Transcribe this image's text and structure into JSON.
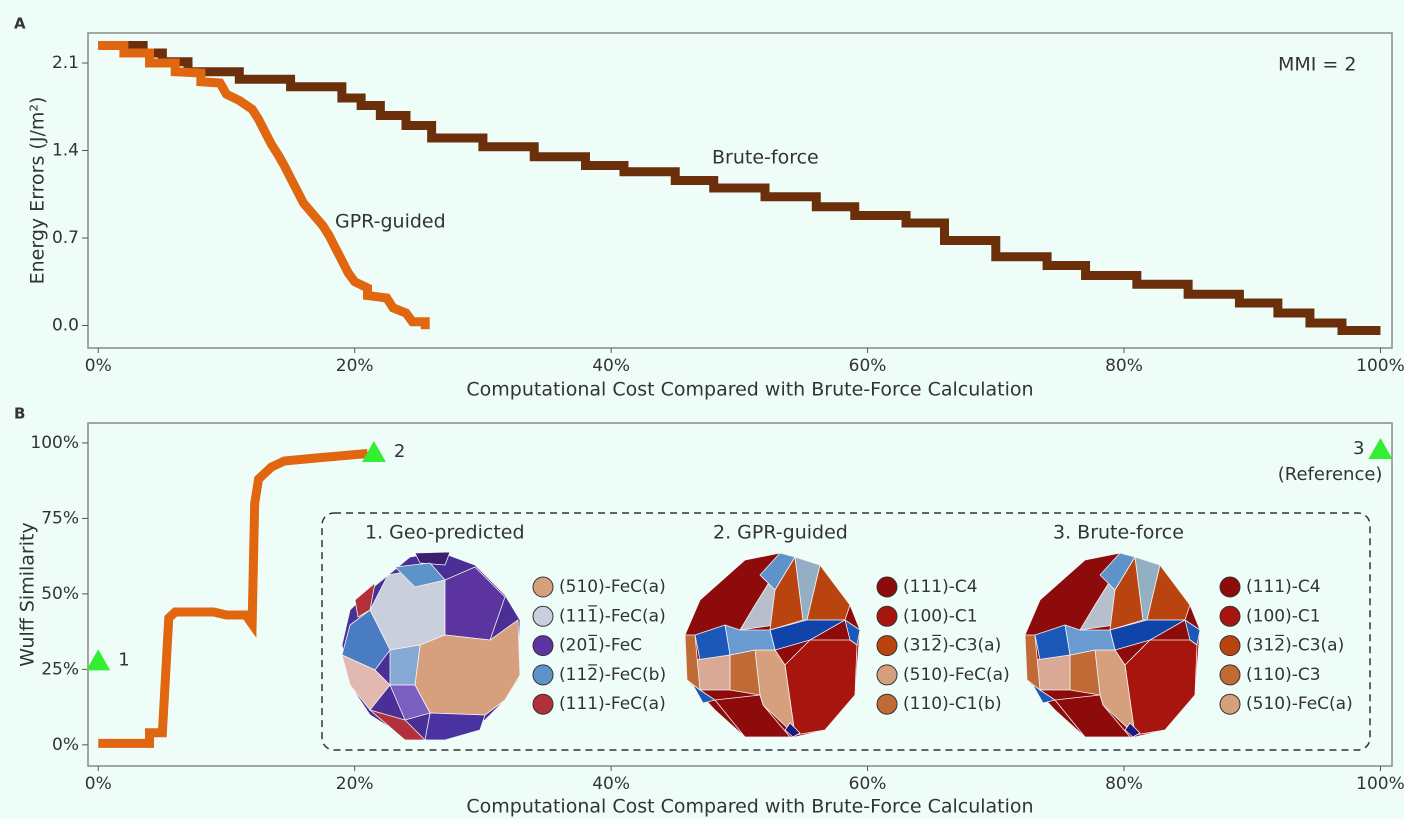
{
  "chart_data": [
    {
      "type": "line",
      "label": "A",
      "xlabel": "Computational Cost Compared with Brute-Force Calculation",
      "ylabel": "Energy Errors (J/m²)",
      "annotation": "MMI = 2",
      "xlim": [
        -0.8,
        100.9
      ],
      "ylim": [
        -0.18,
        2.34
      ],
      "xticks": [
        {
          "value": 0,
          "label": "0%"
        },
        {
          "value": 20,
          "label": "20%"
        },
        {
          "value": 40,
          "label": "40%"
        },
        {
          "value": 60,
          "label": "60%"
        },
        {
          "value": 80,
          "label": "80%"
        },
        {
          "value": 100,
          "label": "100%"
        }
      ],
      "yticks": [
        {
          "value": 0,
          "label": "0.0"
        },
        0.7,
        1.4,
        2.1
      ],
      "series": [
        {
          "name": "Brute-force",
          "color": "#6b2f0c",
          "x": [
            0,
            3.5,
            3.5,
            5,
            5,
            7,
            7,
            11,
            11,
            15,
            15,
            19,
            19,
            20.5,
            20.5,
            22,
            22,
            24,
            24,
            26,
            26,
            30,
            30,
            34,
            34,
            38,
            38,
            41,
            41,
            45,
            45,
            48,
            48,
            52,
            52,
            56,
            56,
            59,
            59,
            63,
            63,
            66,
            66,
            70,
            70,
            74,
            74,
            77,
            77,
            81,
            81,
            85,
            85,
            89,
            89,
            92,
            92,
            94.5,
            94.5,
            97,
            97,
            100
          ],
          "values": [
            2.24,
            2.24,
            2.18,
            2.18,
            2.11,
            2.11,
            2.03,
            2.03,
            1.97,
            1.97,
            1.91,
            1.91,
            1.82,
            1.82,
            1.76,
            1.76,
            1.68,
            1.68,
            1.6,
            1.6,
            1.5,
            1.5,
            1.43,
            1.43,
            1.35,
            1.35,
            1.28,
            1.28,
            1.23,
            1.23,
            1.16,
            1.16,
            1.1,
            1.1,
            1.03,
            1.03,
            0.95,
            0.95,
            0.88,
            0.88,
            0.82,
            0.82,
            0.68,
            0.68,
            0.55,
            0.55,
            0.48,
            0.48,
            0.4,
            0.4,
            0.33,
            0.33,
            0.25,
            0.25,
            0.18,
            0.18,
            0.1,
            0.1,
            0.02,
            0.02,
            -0.04,
            -0.04
          ]
        },
        {
          "name": "GPR-guided",
          "color": "#e0660f",
          "x": [
            0,
            2,
            2,
            4,
            4,
            6,
            6,
            8,
            8,
            9.5,
            10,
            11,
            12,
            12.5,
            13,
            13.5,
            14,
            14.5,
            15,
            15.5,
            16,
            16.5,
            17,
            17.5,
            18,
            18.5,
            19,
            19.5,
            20,
            21,
            21,
            22.5,
            23,
            24,
            24.5,
            25.5,
            25.5
          ],
          "values": [
            2.24,
            2.24,
            2.18,
            2.18,
            2.1,
            2.1,
            2.03,
            2.02,
            1.95,
            1.94,
            1.85,
            1.8,
            1.73,
            1.65,
            1.55,
            1.45,
            1.37,
            1.28,
            1.18,
            1.08,
            0.98,
            0.92,
            0.86,
            0.8,
            0.72,
            0.62,
            0.52,
            0.42,
            0.35,
            0.3,
            0.24,
            0.22,
            0.14,
            0.1,
            0.03,
            0.03,
            -0.03
          ]
        }
      ]
    },
    {
      "type": "line",
      "label": "B",
      "xlabel": "Computational Cost Compared with Brute-Force Calculation",
      "ylabel": "Wulff Similarity",
      "xlim": [
        -0.8,
        100.9
      ],
      "ylim": [
        -7,
        106.6
      ],
      "xticks": [
        {
          "value": 0,
          "label": "0%"
        },
        {
          "value": 20,
          "label": "20%"
        },
        {
          "value": 40,
          "label": "40%"
        },
        {
          "value": 60,
          "label": "60%"
        },
        {
          "value": 80,
          "label": "80%"
        },
        {
          "value": 100,
          "label": "100%"
        }
      ],
      "yticks": [
        {
          "value": 0,
          "label": "0%"
        },
        {
          "value": 25,
          "label": "25%"
        },
        {
          "value": 50,
          "label": "50%"
        },
        {
          "value": 75,
          "label": "75%"
        },
        {
          "value": 100,
          "label": "100%"
        }
      ],
      "series": [
        {
          "color": "#e0660f",
          "x": [
            0,
            4,
            4,
            5,
            5.5,
            6,
            9,
            10,
            11.5,
            12,
            12.2,
            12.5,
            13,
            13.5,
            14.5,
            17,
            21
          ],
          "values": [
            0.5,
            0.5,
            4,
            4,
            42,
            44,
            44,
            43,
            43,
            40,
            80,
            88,
            90,
            92,
            94,
            95,
            96.5
          ]
        }
      ],
      "marker_color": "#33ee33",
      "markers": [
        {
          "x": 0,
          "y": 28,
          "label": "1"
        },
        {
          "x": 21.5,
          "y": 97,
          "label": "2"
        },
        {
          "x": 100,
          "y": 98,
          "label": "3",
          "note": "(Reference)"
        }
      ],
      "inset": [
        {
          "title": "1. Geo-predicted",
          "legend": [
            {
              "label": "(510)-FeC(a)",
              "color": "#d6a07e"
            },
            {
              "label": "(111̅)-FeC(a)",
              "color": "#c9cfdd"
            },
            {
              "label": "(201̅)-FeC",
              "color": "#5c34a0"
            },
            {
              "label": "(112̅)-FeC(b)",
              "color": "#5d93c8"
            },
            {
              "label": "(111)-FeC(a)",
              "color": "#b2303a"
            }
          ]
        },
        {
          "title": "2. GPR-guided",
          "legend": [
            {
              "label": "(111)-C4",
              "color": "#8e0b0b"
            },
            {
              "label": "(100)-C1",
              "color": "#a8150e"
            },
            {
              "label": "(312̅)-C3(a)",
              "color": "#b9440f"
            },
            {
              "label": "(510)-FeC(a)",
              "color": "#d6a07e"
            },
            {
              "label": "(110)-C1(b)",
              "color": "#c06a35"
            }
          ]
        },
        {
          "title": "3. Brute-force",
          "legend": [
            {
              "label": "(111)-C4",
              "color": "#8e0b0b"
            },
            {
              "label": "(100)-C1",
              "color": "#a8150e"
            },
            {
              "label": "(312̅)-C3(a)",
              "color": "#b9440f"
            },
            {
              "label": "(110)-C3",
              "color": "#c06a35"
            },
            {
              "label": "(510)-FeC(a)",
              "color": "#d6a07e"
            }
          ]
        }
      ]
    }
  ]
}
